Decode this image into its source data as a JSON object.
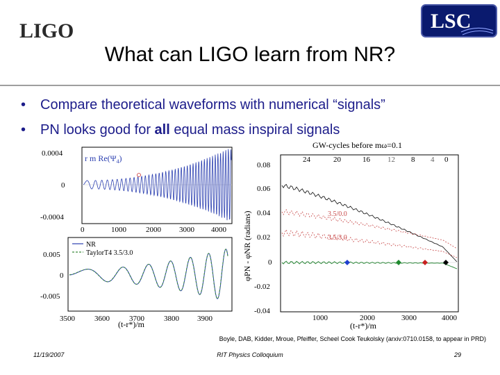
{
  "logos": {
    "left_text": "LIGO",
    "right_text": "LSC"
  },
  "title": "What can LIGO learn from NR?",
  "bullets": [
    {
      "text": "Compare theoretical waveforms with numerical “signals”"
    },
    {
      "pre": "PN looks good for ",
      "bold": "all",
      "post": " equal mass inspiral signals"
    }
  ],
  "plot_top_left": {
    "label_pre": "r m Re(Ψ",
    "label_sub": "4",
    "label_post": ")",
    "yticks": [
      "0.0004",
      "0",
      "-0.0004"
    ],
    "xticks": [
      "0",
      "1000",
      "2000",
      "3000",
      "4000"
    ]
  },
  "plot_bottom_left": {
    "legend": [
      {
        "name": "NR",
        "color": "#2b3fb0"
      },
      {
        "name": "TaylorT4 3.5/3.0",
        "color": "#3c8a3c"
      }
    ],
    "yticks": [
      "0.005",
      "0",
      "-0.005"
    ],
    "xticks": [
      "3500",
      "3600",
      "3700",
      "3800",
      "3900"
    ],
    "xlabel": "(t-r*)/m"
  },
  "plot_right": {
    "top_axis_label": "GW-cycles before mω=0.1",
    "top_ticks": [
      "24",
      "20",
      "16",
      "12",
      "8",
      "4",
      "0"
    ],
    "yticks": [
      "0.08",
      "0.06",
      "0.04",
      "0.02",
      "0",
      "-0.02",
      "-0.04"
    ],
    "xticks": [
      "1000",
      "2000",
      "3000",
      "4000"
    ],
    "xlabel": "(t-r*)/m",
    "ylabel": "φPN - φNR (radians)",
    "annotations": [
      "3.5/0.0",
      "3.5/3.0"
    ]
  },
  "citation": "Boyle, DAB, Kidder, Mroue, Pfeiffer, Scheel Cook Teukolsky (arxiv:0710.0158, to appear in PRD)",
  "footer": {
    "date": "11/19/2007",
    "center": "RIT Physics Colloquium",
    "page": "29"
  }
}
